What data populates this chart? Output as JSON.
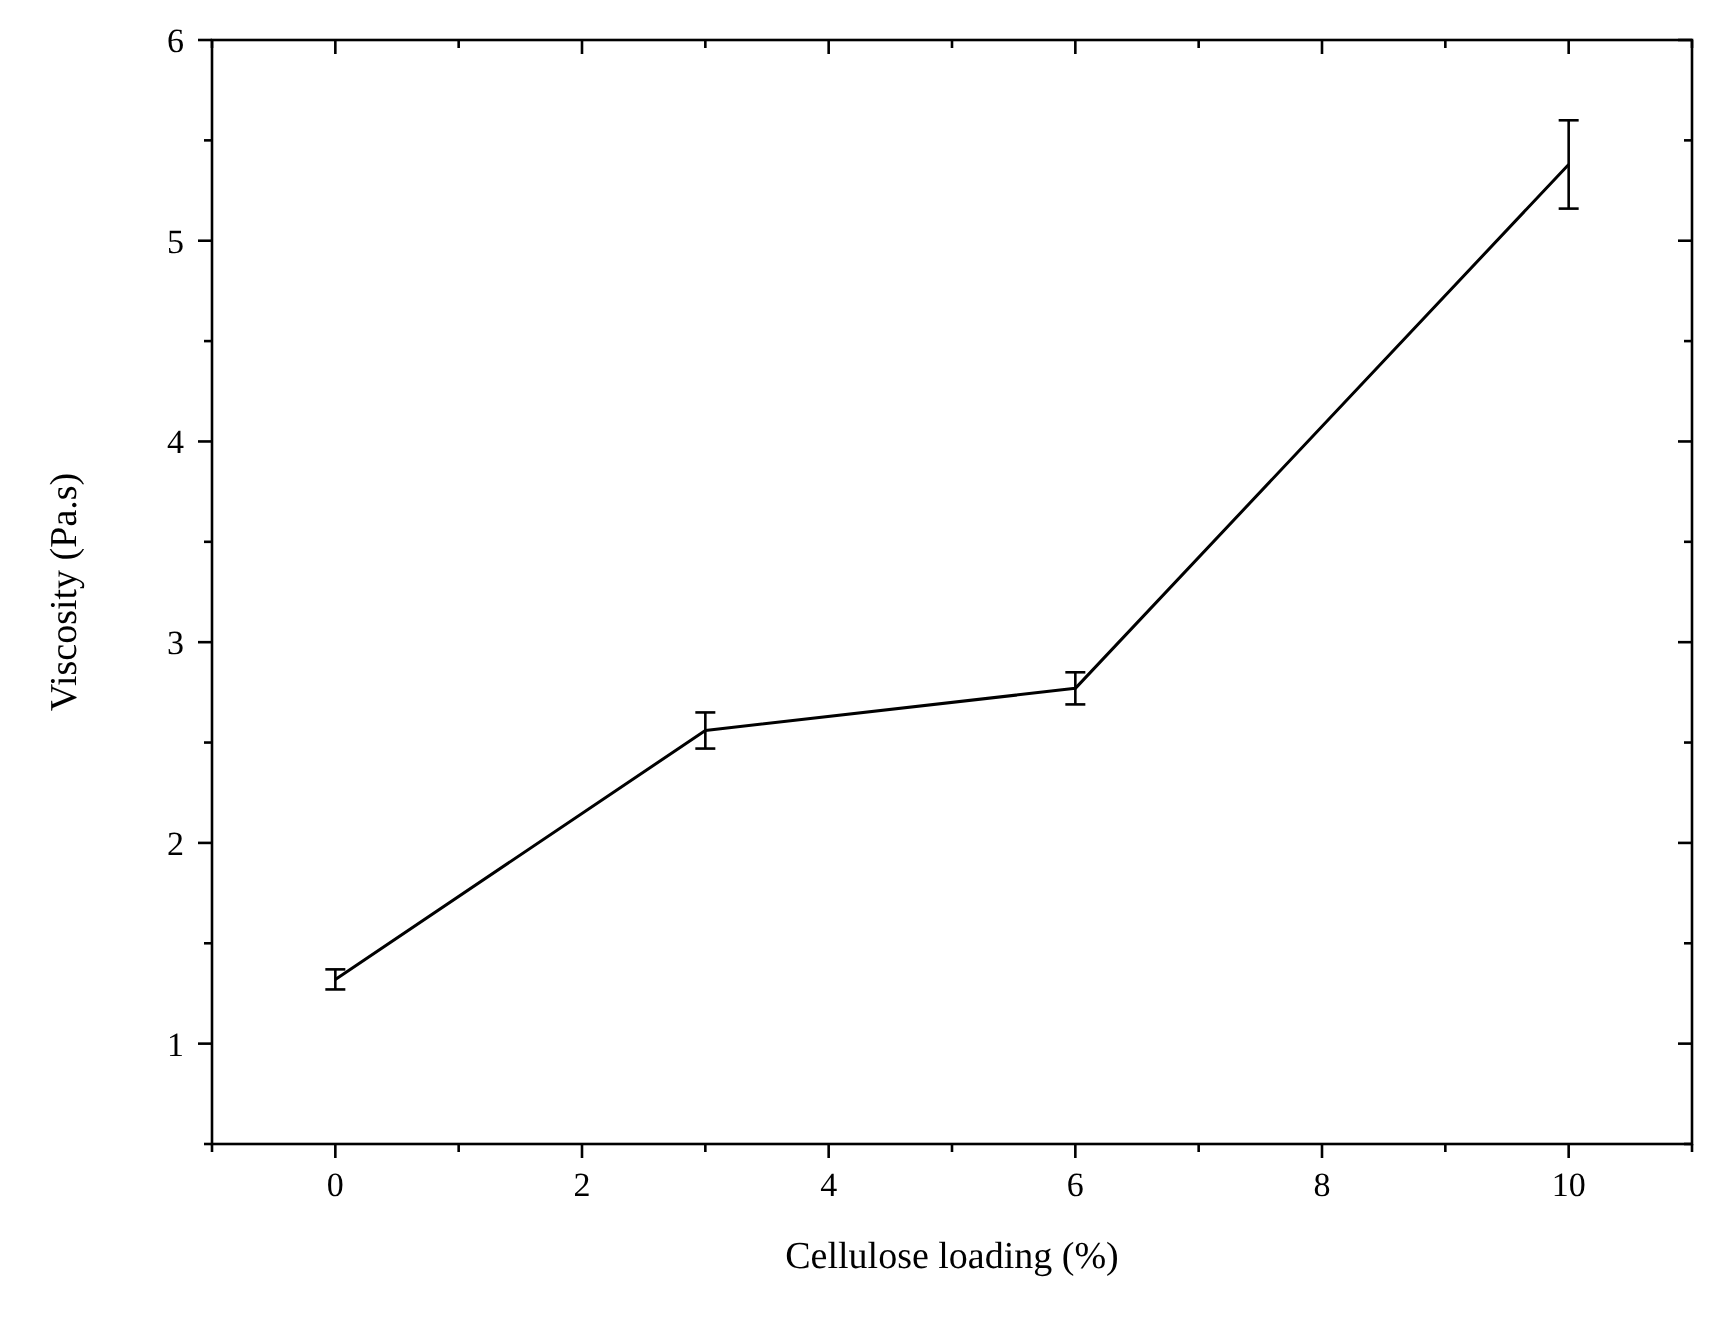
{
  "chart_data": {
    "type": "line",
    "xlabel": "Cellulose loading (%)",
    "ylabel": "Viscosity (Pa.s)",
    "x": [
      0,
      3,
      6,
      10
    ],
    "series": [
      {
        "color": "#000000",
        "values": [
          1.32,
          2.56,
          2.77,
          5.38
        ],
        "errors": [
          0.05,
          0.09,
          0.08,
          0.22
        ]
      }
    ],
    "xlim": [
      -1,
      11
    ],
    "xticks": [
      {
        "value": -1,
        "label": null
      },
      0,
      {
        "value": 1,
        "label": null
      },
      2,
      {
        "value": 3,
        "label": null
      },
      4,
      {
        "value": 5,
        "label": null
      },
      6,
      {
        "value": 7,
        "label": null
      },
      8,
      {
        "value": 9,
        "label": null
      },
      10,
      {
        "value": 11,
        "label": null
      }
    ],
    "ylim": [
      0.5,
      6
    ],
    "yticks": [
      {
        "value": 0.5,
        "label": null
      },
      1,
      {
        "value": 1.5,
        "label": null
      },
      2,
      {
        "value": 2.5,
        "label": null
      },
      3,
      {
        "value": 3.5,
        "label": null
      },
      4,
      {
        "value": 4.5,
        "label": null
      },
      5,
      {
        "value": 5.5,
        "label": null
      },
      6
    ],
    "grid": false,
    "marker": "none",
    "line_style": "solid"
  }
}
